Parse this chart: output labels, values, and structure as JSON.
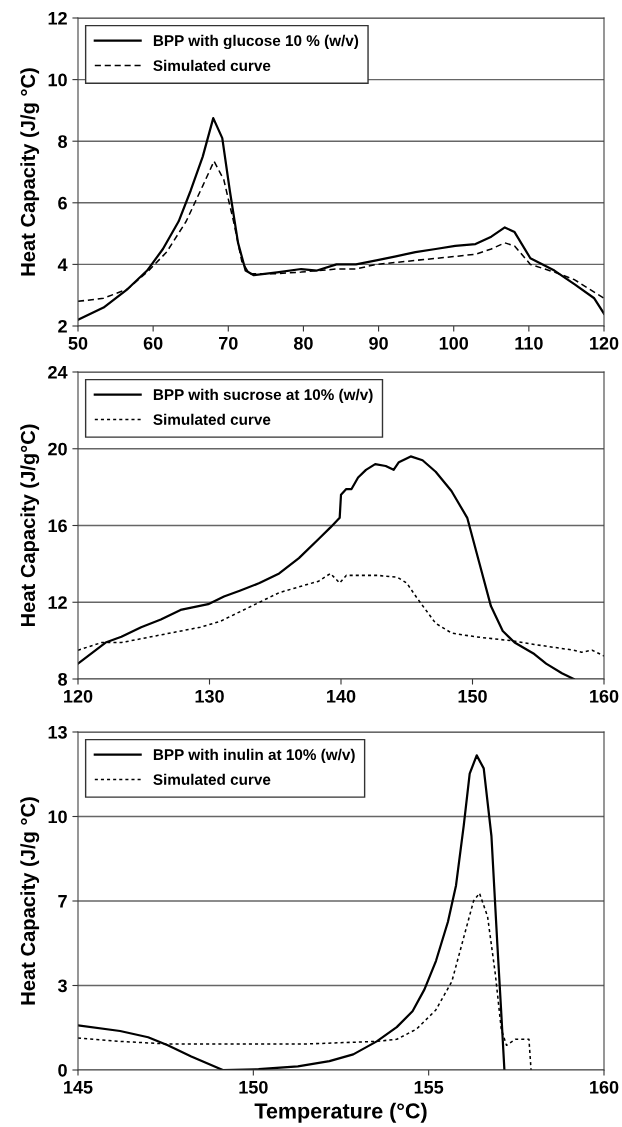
{
  "chart_data": [
    {
      "type": "line",
      "ylabel": "Heat Capacity (J/g °C)",
      "xlim": [
        50,
        120
      ],
      "xticks": [
        50,
        60,
        70,
        80,
        90,
        100,
        110,
        120
      ],
      "ylim": [
        2,
        12
      ],
      "yticks": [
        2,
        4,
        6,
        8,
        10,
        12
      ],
      "grid": "y",
      "legend": "top left",
      "tick_labels": true,
      "series": [
        {
          "name": "BPP with glucose 10 % (w/v)",
          "color": "#000000",
          "line_style": "solid",
          "x": [
            50,
            53.4,
            56.6,
            59.2,
            61.3,
            63.4,
            65.0,
            66.6,
            68.0,
            69.2,
            70.2,
            71.3,
            72.3,
            73.4,
            76.5,
            79.7,
            81.8,
            84.4,
            87.0,
            89.7,
            92.3,
            94.9,
            97.6,
            100.2,
            102.9,
            105.0,
            106.8,
            108.1,
            110.2,
            113.4,
            116.1,
            118.7,
            120
          ],
          "values": [
            2.2,
            2.6,
            3.2,
            3.8,
            4.5,
            5.4,
            6.4,
            7.5,
            8.75,
            8.1,
            6.4,
            4.7,
            3.8,
            3.65,
            3.74,
            3.85,
            3.8,
            4.0,
            4.0,
            4.13,
            4.26,
            4.4,
            4.5,
            4.6,
            4.66,
            4.9,
            5.2,
            5.05,
            4.2,
            3.8,
            3.35,
            2.9,
            2.4
          ]
        },
        {
          "name": "Simulated curve",
          "color": "#000000",
          "line_style": "dashed",
          "x": [
            50,
            53.4,
            56.6,
            59.2,
            61.8,
            64.4,
            66.6,
            68.1,
            69.4,
            70.7,
            71.8,
            72.8,
            76.5,
            79.7,
            84.4,
            87.0,
            89.7,
            94.9,
            100.2,
            102.9,
            105.0,
            106.8,
            108.1,
            110.2,
            113.4,
            116.1,
            120
          ],
          "values": [
            2.8,
            2.9,
            3.2,
            3.75,
            4.4,
            5.4,
            6.55,
            7.35,
            6.75,
            5.4,
            4.1,
            3.7,
            3.7,
            3.75,
            3.85,
            3.85,
            4.0,
            4.13,
            4.26,
            4.33,
            4.5,
            4.7,
            4.6,
            4.0,
            3.75,
            3.5,
            2.9
          ]
        }
      ]
    },
    {
      "type": "line",
      "ylabel": "Heat Capacity (J/g°C)",
      "xlim": [
        120,
        160
      ],
      "xticks": [
        120,
        130,
        140,
        150,
        160
      ],
      "ylim": [
        8,
        24
      ],
      "yticks": [
        8,
        12,
        16,
        20,
        24
      ],
      "grid": "y",
      "legend": "top left",
      "tick_labels": true,
      "series": [
        {
          "name": "BPP with sucrose at 10% (w/v)",
          "color": "#000000",
          "line_style": "solid",
          "x": [
            120,
            122.1,
            123.3,
            124.8,
            126.3,
            127.8,
            129.9,
            131.1,
            132.3,
            133.8,
            135.3,
            136.8,
            138.3,
            139.2,
            139.9,
            140.0,
            140.4,
            140.8,
            141.3,
            141.9,
            142.6,
            143.4,
            144.0,
            144.4,
            145.3,
            146.2,
            147.2,
            148.4,
            149.6,
            150.5,
            151.4,
            152.3,
            153.2,
            154.7,
            155.6,
            156.8,
            157.7
          ],
          "values": [
            8.8,
            9.9,
            10.2,
            10.7,
            11.1,
            11.6,
            11.9,
            12.3,
            12.6,
            13.0,
            13.5,
            14.3,
            15.3,
            15.9,
            16.4,
            17.6,
            17.9,
            17.9,
            18.5,
            18.9,
            19.2,
            19.1,
            18.9,
            19.3,
            19.6,
            19.4,
            18.8,
            17.8,
            16.4,
            14.1,
            11.8,
            10.5,
            9.9,
            9.3,
            8.8,
            8.3,
            8.0
          ]
        },
        {
          "name": "Simulated curve",
          "color": "#000000",
          "line_style": "dotted",
          "x": [
            120,
            121.8,
            123.3,
            126.3,
            129.3,
            130.8,
            132.3,
            133.8,
            135.3,
            136.8,
            138.3,
            139.2,
            139.9,
            140.4,
            142.8,
            144.3,
            145.0,
            145.8,
            147.2,
            148.4,
            150.2,
            152.9,
            154.7,
            157.7,
            158.3,
            159.1,
            160
          ],
          "values": [
            9.5,
            9.9,
            9.9,
            10.3,
            10.7,
            11.0,
            11.5,
            12.0,
            12.5,
            12.8,
            13.1,
            13.5,
            13.0,
            13.4,
            13.4,
            13.3,
            13.0,
            12.2,
            10.9,
            10.4,
            10.2,
            10.0,
            9.8,
            9.5,
            9.4,
            9.5,
            9.2
          ]
        }
      ]
    },
    {
      "type": "line",
      "ylabel": "Heat Capacity (J/g °C)",
      "xlabel": "Temperature (°C)",
      "xlim": [
        145,
        160
      ],
      "xticks": [
        145,
        150,
        155,
        160
      ],
      "ylim": [
        0,
        13
      ],
      "yticks": [
        0,
        {
          "value": 3.25,
          "label": "3"
        },
        {
          "value": 6.5,
          "label": "7"
        },
        {
          "value": 9.75,
          "label": "10"
        },
        13
      ],
      "grid": "y",
      "legend": "top left",
      "tick_labels": true,
      "series": [
        {
          "name": "BPP with inulin at 10% (w/v)",
          "color": "#000000",
          "line_style": "solid",
          "x": [
            145,
            146.2,
            147.0,
            147.56,
            148.23,
            149.13,
            150.15,
            151.27,
            152.17,
            152.85,
            153.52,
            154.09,
            154.54,
            154.88,
            155.21,
            155.55,
            155.78,
            156.0,
            156.17,
            156.37,
            156.57,
            156.79,
            156.96,
            157.07,
            157.16
          ],
          "values": [
            1.72,
            1.5,
            1.26,
            0.95,
            0.52,
            0,
            0.03,
            0.14,
            0.34,
            0.6,
            1.1,
            1.65,
            2.26,
            3.1,
            4.2,
            5.7,
            7.1,
            9.4,
            11.4,
            12.1,
            11.6,
            9.0,
            4.8,
            2.2,
            0
          ]
        },
        {
          "name": "Simulated curve",
          "color": "#000000",
          "line_style": "dotted",
          "x": [
            145,
            146.2,
            147.56,
            149.6,
            151.5,
            153.5,
            154.09,
            154.65,
            155.2,
            155.66,
            156.0,
            156.28,
            156.45,
            156.68,
            156.9,
            157.07,
            157.22,
            157.47,
            157.86,
            157.92
          ],
          "values": [
            1.23,
            1.1,
            1.0,
            1.0,
            1.0,
            1.1,
            1.18,
            1.57,
            2.3,
            3.4,
            5.1,
            6.5,
            6.8,
            5.9,
            3.7,
            1.57,
            0.95,
            1.18,
            1.18,
            0
          ]
        }
      ]
    }
  ]
}
